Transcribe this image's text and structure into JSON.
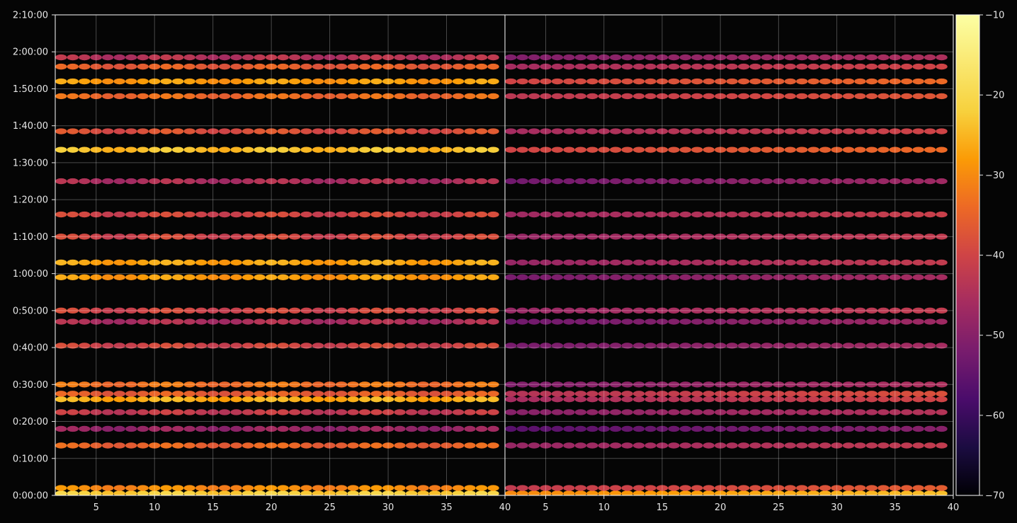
{
  "chart_data": {
    "type": "heatmap",
    "title": "",
    "xlabel": "",
    "ylabel": "",
    "colormap": "inferno",
    "background": "#050505",
    "grid": true,
    "panels": [
      {
        "name": "",
        "xlim": [
          1.5,
          40
        ],
        "x_ticks": [
          "5",
          "10",
          "15",
          "20",
          "25",
          "30",
          "35",
          "40"
        ],
        "x_tick_values": [
          5,
          10,
          15,
          20,
          25,
          30,
          35,
          40
        ],
        "x_range": [
          2,
          39
        ]
      },
      {
        "name": "",
        "xlim": [
          1.5,
          40
        ],
        "x_ticks": [
          "5",
          "10",
          "15",
          "20",
          "25",
          "30",
          "35",
          "40"
        ],
        "x_tick_values": [
          5,
          10,
          15,
          20,
          25,
          30,
          35,
          40
        ],
        "x_range": [
          2,
          39
        ]
      }
    ],
    "y_axis": {
      "units": "h:mm:ss",
      "ylim_seconds": [
        0,
        7800
      ],
      "ticks": [
        "0:00:00",
        "0:10:00",
        "0:20:00",
        "0:30:00",
        "0:40:00",
        "0:50:00",
        "1:00:00",
        "1:10:00",
        "1:20:00",
        "1:30:00",
        "1:40:00",
        "1:50:00",
        "2:00:00",
        "2:10:00"
      ],
      "tick_values_seconds": [
        0,
        600,
        1200,
        1800,
        2400,
        3000,
        3600,
        4200,
        4800,
        5400,
        6000,
        6600,
        7200,
        7800
      ]
    },
    "colorbar": {
      "range": [
        -70,
        -10
      ],
      "ticks": [
        "−10",
        "−20",
        "−30",
        "−40",
        "−50",
        "−60",
        "−70"
      ],
      "tick_values": [
        -10,
        -20,
        -30,
        -40,
        -50,
        -60,
        -70
      ]
    },
    "bands_description": [
      {
        "time": "0:00:30",
        "level_left": -22,
        "level_right": -24
      },
      {
        "time": "0:02:00",
        "level_left": -30,
        "level_right": -36
      },
      {
        "time": "0:13:30",
        "level_left": -35,
        "level_right": -42
      },
      {
        "time": "0:18:00",
        "level_left": -48,
        "level_right": -50
      },
      {
        "time": "0:22:30",
        "level_left": -42,
        "level_right": -44
      },
      {
        "time": "0:26:00",
        "level_left": -26,
        "level_right": -40
      },
      {
        "time": "0:27:30",
        "level_left": -36,
        "level_right": -38
      },
      {
        "time": "0:30:00",
        "level_left": -33,
        "level_right": -45
      },
      {
        "time": "0:40:30",
        "level_left": -40,
        "level_right": -46
      },
      {
        "time": "0:47:00",
        "level_left": -45,
        "level_right": -47
      },
      {
        "time": "0:50:00",
        "level_left": -40,
        "level_right": -42
      },
      {
        "time": "0:59:00",
        "level_left": -28,
        "level_right": -46
      },
      {
        "time": "1:03:00",
        "level_left": -27,
        "level_right": -42
      },
      {
        "time": "1:10:00",
        "level_left": -40,
        "level_right": -42
      },
      {
        "time": "1:16:00",
        "level_left": -40,
        "level_right": -41
      },
      {
        "time": "1:25:00",
        "level_left": -45,
        "level_right": -47
      },
      {
        "time": "1:33:30",
        "level_left": -24,
        "level_right": -34
      },
      {
        "time": "1:38:30",
        "level_left": -38,
        "level_right": -40
      },
      {
        "time": "1:48:00",
        "level_left": -34,
        "level_right": -37
      },
      {
        "time": "1:52:00",
        "level_left": -28,
        "level_right": -34
      },
      {
        "time": "1:56:00",
        "level_left": -36,
        "level_right": -40
      },
      {
        "time": "1:58:30",
        "level_left": -44,
        "level_right": -45
      }
    ]
  }
}
